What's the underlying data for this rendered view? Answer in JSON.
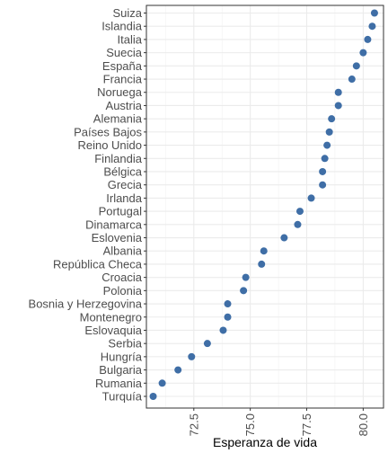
{
  "chart_data": {
    "type": "scatter",
    "title": "",
    "xlabel": "Esperanza de vida",
    "ylabel": "",
    "xlim": [
      70.4,
      80.9
    ],
    "x_ticks": [
      72.5,
      75.0,
      77.5,
      80.0
    ],
    "x_tick_labels": [
      "72.5",
      "75.0",
      "77.5",
      "80.0"
    ],
    "grid": true,
    "legend": "none",
    "point_color": "#3F6EA6",
    "categories": [
      "Suiza",
      "Islandia",
      "Italia",
      "Suecia",
      "España",
      "Francia",
      "Noruega",
      "Austria",
      "Alemania",
      "Países Bajos",
      "Reino Unido",
      "Finlandia",
      "Bélgica",
      "Grecia",
      "Irlanda",
      "Portugal",
      "Dinamarca",
      "Eslovenia",
      "Albania",
      "República Checa",
      "Croacia",
      "Polonia",
      "Bosnia y Herzegovina",
      "Montenegro",
      "Eslovaquia",
      "Serbia",
      "Hungría",
      "Bulgaria",
      "Rumania",
      "Turquía"
    ],
    "values": [
      80.5,
      80.4,
      80.2,
      80.0,
      79.7,
      79.5,
      78.9,
      78.9,
      78.6,
      78.5,
      78.4,
      78.3,
      78.2,
      78.2,
      77.7,
      77.2,
      77.1,
      76.5,
      75.6,
      75.5,
      74.8,
      74.7,
      74.0,
      74.0,
      73.8,
      73.1,
      72.4,
      71.8,
      71.1,
      70.7
    ]
  }
}
